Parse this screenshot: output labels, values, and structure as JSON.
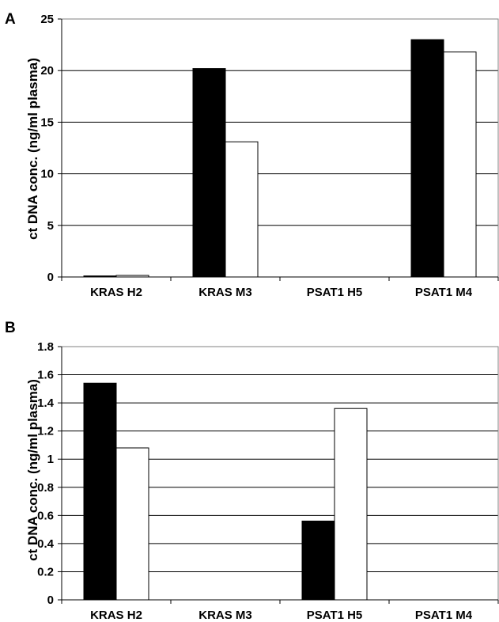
{
  "chart_data": [
    {
      "type": "bar",
      "panel_label": "A",
      "categories": [
        "KRAS H2",
        "KRAS M3",
        "PSAT1 H5",
        "PSAT1 M4"
      ],
      "series": [
        {
          "values": [
            0.1,
            20.2,
            0,
            23.0
          ],
          "color": "#000000"
        },
        {
          "values": [
            0.15,
            13.1,
            0,
            21.8
          ],
          "color": "#ffffff"
        }
      ],
      "ylabel": "ct DNA conc. (ng/ml plasma)",
      "ylim": [
        0,
        25
      ],
      "yticks": [
        "0",
        "5",
        "10",
        "15",
        "20",
        "25"
      ],
      "grid": true
    },
    {
      "type": "bar",
      "panel_label": "B",
      "categories": [
        "KRAS H2",
        "KRAS M3",
        "PSAT1 H5",
        "PSAT1 M4"
      ],
      "series": [
        {
          "values": [
            1.54,
            0,
            0.56,
            0
          ],
          "color": "#000000"
        },
        {
          "values": [
            1.08,
            0,
            1.36,
            0
          ],
          "color": "#ffffff"
        }
      ],
      "ylabel": "ct DNA conc. (ng/ml plasma)",
      "ylim": [
        0,
        1.8
      ],
      "yticks": [
        "0",
        "0.2",
        "0.4",
        "0.6",
        "0.8",
        "1",
        "1.2",
        "1.4",
        "1.6",
        "1.8"
      ],
      "grid": true
    }
  ]
}
